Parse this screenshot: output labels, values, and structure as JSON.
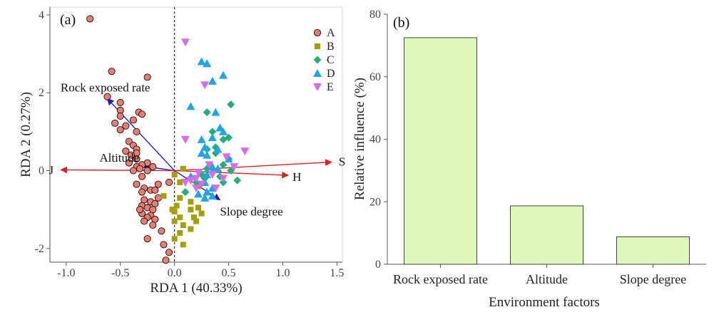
{
  "colors": {
    "A": "#ec7b72",
    "B": "#a4a00c",
    "C": "#22b07a",
    "D": "#22a3e6",
    "E": "#d66ce8",
    "env_arrow": "#e02020",
    "species_arrow": "#1a1ad0",
    "bar_fill": "#dcf7b8"
  },
  "chart_data": [
    {
      "type": "scatter",
      "panel_label": "(a)",
      "xlabel": "RDA 1 (40.33%)",
      "ylabel": "RDA 2 (0.27%)",
      "xlim": [
        -1.15,
        1.55
      ],
      "ylim": [
        -2.35,
        4.2
      ],
      "xticks": [
        {
          "value": -1.0,
          "label": "-1.0"
        },
        {
          "value": -0.5,
          "label": "-0.5"
        },
        {
          "value": 0.0,
          "label": "0.0"
        },
        {
          "value": 0.5,
          "label": "0.5"
        },
        {
          "value": 1.0,
          "label": "1.0"
        },
        {
          "value": 1.5,
          "label": "1.5"
        }
      ],
      "yticks": [
        {
          "value": -2,
          "label": "-2"
        },
        {
          "value": 0,
          "label": "0"
        },
        {
          "value": 2,
          "label": "2"
        },
        {
          "value": 4,
          "label": "4"
        }
      ],
      "zero_line_x": 0,
      "legend_position": "top-right",
      "series": [
        {
          "name": "A",
          "marker": "circle",
          "points": [
            [
              -0.78,
              3.9
            ],
            [
              -0.58,
              2.55
            ],
            [
              -0.25,
              2.4
            ],
            [
              -0.62,
              1.9
            ],
            [
              -0.5,
              1.75
            ],
            [
              -0.5,
              1.55
            ],
            [
              -0.33,
              1.5
            ],
            [
              -0.3,
              1.45
            ],
            [
              -0.5,
              1.4
            ],
            [
              -0.38,
              1.3
            ],
            [
              -0.55,
              1.22
            ],
            [
              -0.45,
              1.15
            ],
            [
              -0.5,
              1.05
            ],
            [
              -0.35,
              1.0
            ],
            [
              -0.42,
              0.75
            ],
            [
              -0.38,
              0.65
            ],
            [
              -0.35,
              0.55
            ],
            [
              -0.45,
              0.5
            ],
            [
              -0.35,
              0.45
            ],
            [
              -0.4,
              0.4
            ],
            [
              -0.35,
              0.3
            ],
            [
              -0.42,
              0.2
            ],
            [
              -0.25,
              0.2
            ],
            [
              -0.3,
              0.15
            ],
            [
              -0.35,
              0.1
            ],
            [
              -0.2,
              0.1
            ],
            [
              -0.32,
              0.05
            ],
            [
              -0.25,
              0.0
            ],
            [
              -0.38,
              0.0
            ],
            [
              -0.3,
              -0.15
            ],
            [
              -0.35,
              -0.35
            ],
            [
              -0.28,
              -0.45
            ],
            [
              -0.22,
              -0.5
            ],
            [
              -0.18,
              -0.5
            ],
            [
              -0.3,
              -0.55
            ],
            [
              -0.05,
              -0.3
            ],
            [
              -0.15,
              -0.35
            ],
            [
              -0.28,
              -0.75
            ],
            [
              -0.22,
              -0.8
            ],
            [
              -0.18,
              -0.85
            ],
            [
              -0.3,
              -0.9
            ],
            [
              -0.25,
              -0.95
            ],
            [
              -0.2,
              -1.0
            ],
            [
              -0.3,
              -1.1
            ],
            [
              -0.22,
              -1.15
            ],
            [
              -0.25,
              -1.2
            ],
            [
              -0.18,
              -1.25
            ],
            [
              -0.28,
              -1.3
            ],
            [
              -0.15,
              -0.7
            ],
            [
              -0.32,
              -1.0
            ],
            [
              -0.2,
              -1.4
            ],
            [
              -0.25,
              -1.75
            ],
            [
              -0.12,
              -1.55
            ],
            [
              -0.1,
              -1.9
            ],
            [
              -0.05,
              -2.1
            ],
            [
              -0.08,
              -2.3
            ]
          ]
        },
        {
          "name": "B",
          "marker": "square",
          "points": [
            [
              0.08,
              0.05
            ],
            [
              0.0,
              -0.1
            ],
            [
              0.05,
              -0.3
            ],
            [
              -0.1,
              -0.65
            ],
            [
              0.05,
              -0.7
            ],
            [
              0.02,
              -0.9
            ],
            [
              -0.02,
              -1.0
            ],
            [
              0.0,
              -1.05
            ],
            [
              0.15,
              -1.0
            ],
            [
              0.22,
              -0.95
            ],
            [
              0.25,
              -1.1
            ],
            [
              0.05,
              -1.2
            ],
            [
              0.18,
              -1.2
            ],
            [
              0.2,
              -1.3
            ],
            [
              0.0,
              -1.3
            ],
            [
              0.08,
              -1.4
            ],
            [
              0.15,
              -1.5
            ],
            [
              0.05,
              -1.6
            ],
            [
              0.0,
              -1.75
            ],
            [
              0.08,
              -1.9
            ],
            [
              0.22,
              -0.4
            ],
            [
              0.15,
              -0.8
            ]
          ]
        },
        {
          "name": "C",
          "marker": "diamond",
          "points": [
            [
              0.52,
              1.7
            ],
            [
              0.3,
              1.5
            ],
            [
              0.35,
              1.0
            ],
            [
              0.5,
              0.85
            ],
            [
              0.45,
              0.8
            ],
            [
              0.38,
              0.6
            ],
            [
              0.3,
              0.55
            ],
            [
              0.38,
              0.45
            ],
            [
              0.5,
              0.3
            ],
            [
              0.45,
              0.15
            ],
            [
              0.52,
              0.0
            ],
            [
              0.42,
              -0.15
            ],
            [
              0.35,
              -0.05
            ],
            [
              0.3,
              0.05
            ],
            [
              0.25,
              -0.1
            ],
            [
              0.28,
              -0.2
            ],
            [
              0.58,
              -0.25
            ],
            [
              0.45,
              -0.3
            ],
            [
              0.2,
              -0.3
            ],
            [
              0.1,
              -0.55
            ]
          ]
        },
        {
          "name": "D",
          "marker": "triangle-up",
          "points": [
            [
              0.3,
              2.75
            ],
            [
              0.25,
              2.8
            ],
            [
              0.45,
              2.45
            ],
            [
              0.35,
              2.3
            ],
            [
              0.15,
              1.65
            ],
            [
              0.38,
              1.5
            ],
            [
              0.42,
              1.1
            ],
            [
              0.45,
              1.0
            ],
            [
              0.35,
              0.85
            ],
            [
              0.25,
              0.8
            ],
            [
              0.28,
              0.6
            ],
            [
              0.4,
              0.55
            ],
            [
              0.3,
              0.4
            ],
            [
              0.25,
              0.45
            ],
            [
              0.5,
              0.3
            ],
            [
              0.35,
              0.1
            ],
            [
              0.4,
              0.05
            ],
            [
              0.3,
              -0.1
            ],
            [
              0.15,
              -0.15
            ],
            [
              0.28,
              -0.3
            ],
            [
              0.35,
              -0.45
            ],
            [
              0.3,
              -0.55
            ],
            [
              0.22,
              -0.6
            ],
            [
              0.35,
              -0.65
            ],
            [
              0.28,
              -0.7
            ]
          ]
        },
        {
          "name": "E",
          "marker": "triangle-down",
          "points": [
            [
              0.1,
              3.3
            ],
            [
              0.28,
              2.2
            ],
            [
              0.1,
              0.8
            ],
            [
              0.65,
              0.5
            ],
            [
              0.48,
              0.35
            ],
            [
              0.55,
              0.1
            ],
            [
              0.32,
              0.15
            ],
            [
              0.22,
              -0.05
            ],
            [
              0.35,
              -0.1
            ],
            [
              0.45,
              -0.2
            ],
            [
              0.2,
              -0.2
            ],
            [
              0.25,
              -0.35
            ],
            [
              0.15,
              -0.25
            ],
            [
              0.38,
              -0.45
            ],
            [
              0.2,
              -0.45
            ],
            [
              0.1,
              -0.3
            ]
          ]
        }
      ],
      "env_vectors": [
        {
          "label": "S",
          "x": 1.45,
          "y": 0.22
        },
        {
          "label": "H",
          "x": 1.05,
          "y": -0.12
        },
        {
          "label": "J",
          "x": -1.05,
          "y": 0.02
        }
      ],
      "species_vectors": [
        {
          "label": "Rock exposed rate",
          "x": -0.62,
          "y": 1.85
        },
        {
          "label": "Altitude",
          "x": -0.3,
          "y": 0.12
        },
        {
          "label": "Slope degree",
          "x": 0.42,
          "y": -0.75
        }
      ]
    },
    {
      "type": "bar",
      "panel_label": "(b)",
      "categories": [
        "Rock exposed rate",
        "Altitude",
        "Slope degree"
      ],
      "values": [
        72.5,
        18.7,
        8.8
      ],
      "xlabel": "Environment factors",
      "ylabel": "Relative influence (%)",
      "ylim": [
        0,
        80
      ],
      "yticks": [
        {
          "value": 0,
          "label": "0"
        },
        {
          "value": 20,
          "label": "20"
        },
        {
          "value": 40,
          "label": "40"
        },
        {
          "value": 60,
          "label": "60"
        },
        {
          "value": 80,
          "label": "80"
        }
      ]
    }
  ]
}
